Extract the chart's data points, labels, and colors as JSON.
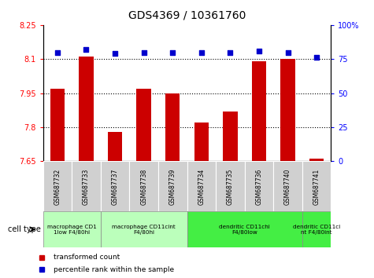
{
  "title": "GDS4369 / 10361760",
  "samples": [
    "GSM687732",
    "GSM687733",
    "GSM687737",
    "GSM687738",
    "GSM687739",
    "GSM687734",
    "GSM687735",
    "GSM687736",
    "GSM687740",
    "GSM687741"
  ],
  "transformed_counts": [
    7.97,
    8.11,
    7.78,
    7.97,
    7.95,
    7.82,
    7.87,
    8.09,
    8.1,
    7.66
  ],
  "percentile_ranks": [
    80,
    82,
    79,
    80,
    80,
    80,
    80,
    81,
    80,
    76
  ],
  "bar_color": "#cc0000",
  "dot_color": "#0000cc",
  "ylim_left": [
    7.65,
    8.25
  ],
  "ylim_right": [
    0,
    100
  ],
  "yticks_left": [
    7.65,
    7.8,
    7.95,
    8.1,
    8.25
  ],
  "ytick_labels_left": [
    "7.65",
    "7.8",
    "7.95",
    "8.1",
    "8.25"
  ],
  "yticks_right": [
    0,
    25,
    50,
    75,
    100
  ],
  "ytick_labels_right": [
    "0",
    "25",
    "50",
    "75",
    "100%"
  ],
  "hlines": [
    7.8,
    7.95,
    8.1
  ],
  "cell_type_groups": [
    {
      "label": "macrophage CD1\n1low F4/80hi",
      "start": 0,
      "end": 1,
      "color": "#bbffbb"
    },
    {
      "label": "macrophage CD11cint\nF4/80hi",
      "start": 2,
      "end": 4,
      "color": "#bbffbb"
    },
    {
      "label": "dendritic CD11chi\nF4/80low",
      "start": 5,
      "end": 8,
      "color": "#44ee44"
    },
    {
      "label": "dendritic CD11ci\nnt F4/80int",
      "start": 9,
      "end": 9,
      "color": "#44ee44"
    }
  ],
  "cell_type_label": "cell type",
  "legend_red_label": "transformed count",
  "legend_blue_label": "percentile rank within the sample",
  "tick_label_bg": "#dddddd",
  "bar_bottom": 7.65
}
